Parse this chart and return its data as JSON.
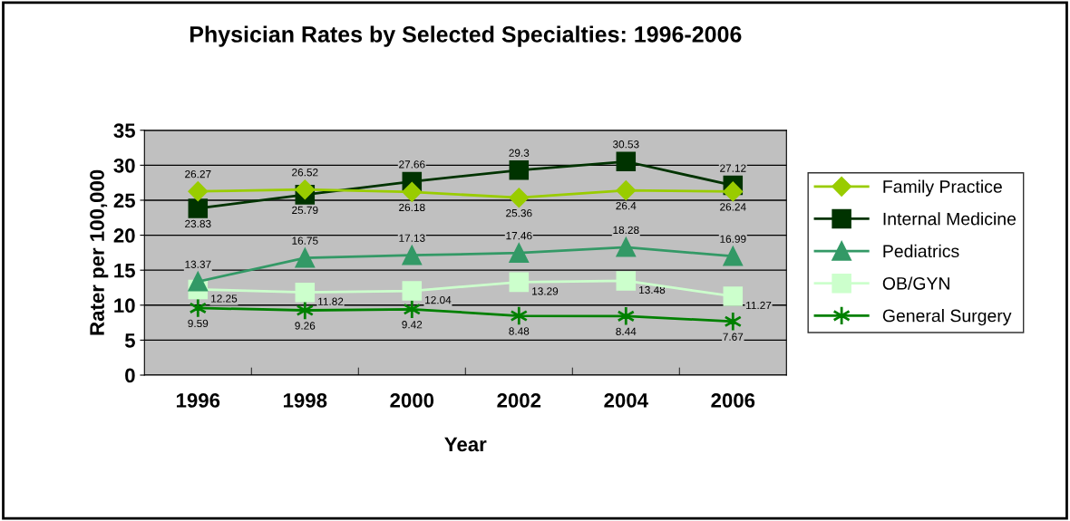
{
  "chart_data": {
    "type": "line",
    "title": "Physician Rates by Selected Specialties: 1996-2006",
    "xlabel": "Year",
    "ylabel": "Rater per 100,000",
    "categories": [
      "1996",
      "1998",
      "2000",
      "2002",
      "2004",
      "2006"
    ],
    "series": [
      {
        "name": "Family Practice",
        "color": "#99cc00",
        "marker": "diamond",
        "values": [
          26.27,
          26.52,
          26.18,
          25.36,
          26.4,
          26.24
        ]
      },
      {
        "name": "Internal Medicine",
        "color": "#003300",
        "marker": "square",
        "values": [
          23.83,
          25.79,
          27.66,
          29.3,
          30.53,
          27.12
        ]
      },
      {
        "name": "Pediatrics",
        "color": "#339966",
        "marker": "triangle",
        "values": [
          13.37,
          16.75,
          17.13,
          17.46,
          18.28,
          16.99
        ]
      },
      {
        "name": "OB/GYN",
        "color": "#ccffcc",
        "marker": "square",
        "values": [
          12.25,
          11.82,
          12.04,
          13.29,
          13.48,
          11.27
        ]
      },
      {
        "name": "General Surgery",
        "color": "#008000",
        "marker": "cross",
        "values": [
          9.59,
          9.26,
          9.42,
          8.48,
          8.44,
          7.67
        ]
      }
    ],
    "ylim": [
      0,
      35
    ],
    "yticks": [
      0,
      5,
      10,
      15,
      20,
      25,
      30,
      35
    ],
    "grid": "y",
    "legend": "right",
    "data_labels": true,
    "line_style": "solid"
  }
}
